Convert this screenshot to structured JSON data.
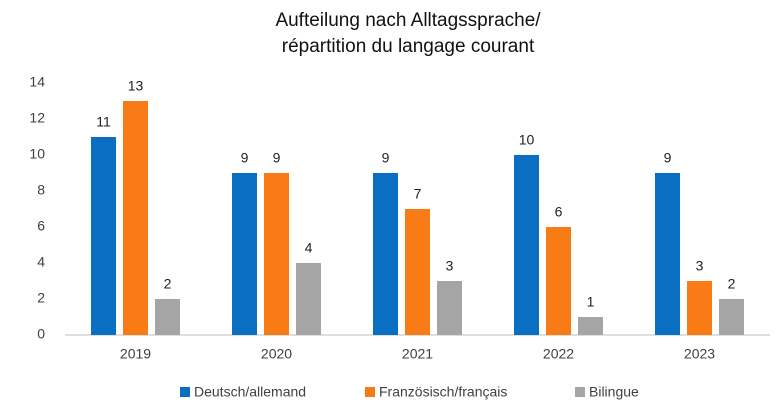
{
  "chart_data": {
    "type": "bar",
    "title": [
      "Aufteilung nach Alltagssprache/",
      "répartition du langage courant"
    ],
    "categories": [
      "2019",
      "2020",
      "2021",
      "2022",
      "2023"
    ],
    "series": [
      {
        "name": "Deutsch/allemand",
        "color": "#0a6fc2",
        "values": [
          11,
          9,
          9,
          10,
          9
        ]
      },
      {
        "name": "Französisch/français",
        "color": "#f97b16",
        "values": [
          13,
          9,
          7,
          6,
          3
        ]
      },
      {
        "name": "Bilingue",
        "color": "#a5a5a5",
        "values": [
          2,
          4,
          3,
          1,
          2
        ]
      }
    ],
    "ylim": [
      0,
      14
    ],
    "yticks": [
      0,
      2,
      4,
      6,
      8,
      10,
      12,
      14
    ],
    "grid": false,
    "legend": "bottom"
  }
}
